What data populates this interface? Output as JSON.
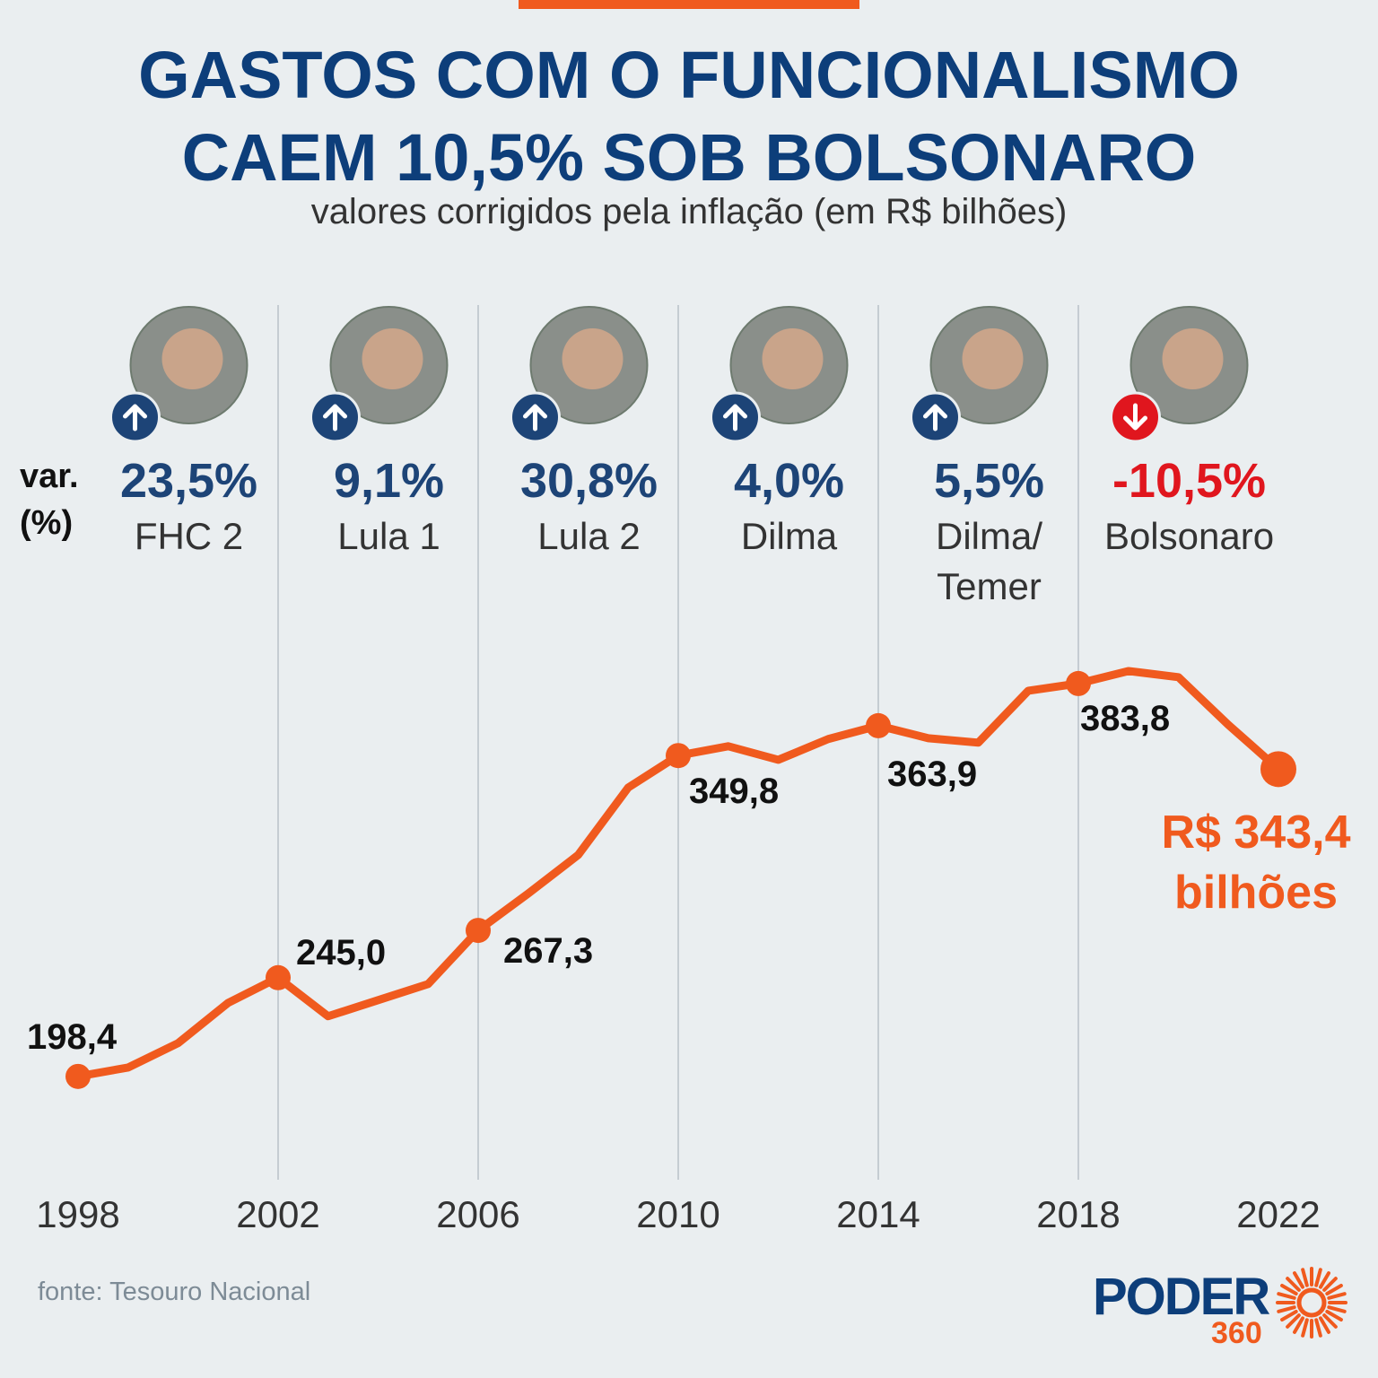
{
  "chart_data": {
    "type": "line",
    "title": "GASTOS COM O FUNCIONALISMO CAEM 10,5% SOB BOLSONARO",
    "subtitle": "valores corrigidos pela inflação (em R$ bilhões)",
    "x": [
      1998,
      1999,
      2000,
      2001,
      2002,
      2003,
      2004,
      2005,
      2006,
      2007,
      2008,
      2009,
      2010,
      2011,
      2012,
      2013,
      2014,
      2015,
      2016,
      2017,
      2018,
      2019,
      2020,
      2021,
      2022
    ],
    "values": [
      198.4,
      202.6,
      214.1,
      233.1,
      245.0,
      226.8,
      234.4,
      242.0,
      267.3,
      284.7,
      302.9,
      334.7,
      349.8,
      354.2,
      347.8,
      357.6,
      363.9,
      358.0,
      355.9,
      380.4,
      383.8,
      389.7,
      386.8,
      364.3,
      343.4
    ],
    "value_labels": [
      "198,4",
      null,
      null,
      null,
      "245,0",
      null,
      null,
      null,
      "267,3",
      null,
      null,
      null,
      "349,8",
      null,
      null,
      null,
      "363,9",
      null,
      null,
      null,
      "383,8",
      null,
      null,
      null,
      "R$ 343,4"
    ],
    "end_unit": "bilhões",
    "color": "#f05a1e",
    "xlim": [
      1998,
      2022
    ],
    "xticks": [
      1998,
      2002,
      2006,
      2010,
      2014,
      2018,
      2022
    ],
    "ylim": [
      156,
      410
    ],
    "grid": true,
    "change_axis_label": "var. (%)",
    "periods": [
      {
        "name": "FHC 2",
        "change": 23.5,
        "change_label": "23,5%"
      },
      {
        "name": "Lula 1",
        "change": 9.1,
        "change_label": "9,1%"
      },
      {
        "name": "Lula 2",
        "change": 30.8,
        "change_label": "30,8%"
      },
      {
        "name": "Dilma",
        "change": 4.0,
        "change_label": "4,0%"
      },
      {
        "name": "Dilma/ Temer",
        "change": 5.5,
        "change_label": "5,5%"
      },
      {
        "name": "Bolsonaro",
        "change": -10.5,
        "change_label": "-10,5%"
      }
    ],
    "source": "fonte: Tesouro Nacional",
    "logo": {
      "name": "PODER",
      "number": "360"
    }
  }
}
